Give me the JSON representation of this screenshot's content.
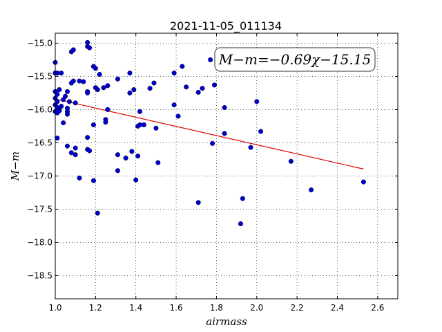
{
  "chart_data": {
    "type": "scatter",
    "title": "2021-11-05_011134",
    "xlabel": "airmass",
    "ylabel": "M−m",
    "xlim": [
      1.0,
      2.7
    ],
    "ylim": [
      -18.85,
      -14.85
    ],
    "y_inverted": true,
    "xticks": [
      1.0,
      1.2,
      1.4,
      1.6,
      1.8,
      2.0,
      2.2,
      2.4,
      2.6
    ],
    "xtick_labels": [
      "1.0",
      "1.2",
      "1.4",
      "1.6",
      "1.8",
      "2.0",
      "2.2",
      "2.4",
      "2.6"
    ],
    "yticks": [
      -15.0,
      -15.5,
      -16.0,
      -16.5,
      -17.0,
      -17.5,
      -18.0,
      -18.5
    ],
    "ytick_labels": [
      "−15.0",
      "−15.5",
      "−16.0",
      "−16.5",
      "−17.0",
      "−17.5",
      "−18.0",
      "−18.5"
    ],
    "grid": true,
    "annotation": "M−m=−0.69χ−15.15",
    "point_color": "#0000cc",
    "fit_color": "#dd0000",
    "fit": {
      "slope": -0.69,
      "intercept": -15.15,
      "x_range": [
        1.0,
        2.53
      ]
    },
    "points": [
      {
        "x": 1.0,
        "y": -15.29
      },
      {
        "x": 1.01,
        "y": -15.45
      },
      {
        "x": 1.0,
        "y": -15.45
      },
      {
        "x": 1.0,
        "y": -15.73
      },
      {
        "x": 1.01,
        "y": -15.77
      },
      {
        "x": 1.02,
        "y": -15.7
      },
      {
        "x": 1.0,
        "y": -15.83
      },
      {
        "x": 1.01,
        "y": -15.88
      },
      {
        "x": 1.0,
        "y": -15.93
      },
      {
        "x": 1.01,
        "y": -15.97
      },
      {
        "x": 1.02,
        "y": -16.0
      },
      {
        "x": 1.0,
        "y": -16.03
      },
      {
        "x": 1.01,
        "y": -16.05
      },
      {
        "x": 1.03,
        "y": -15.95
      },
      {
        "x": 1.02,
        "y": -16.02
      },
      {
        "x": 1.03,
        "y": -15.45
      },
      {
        "x": 1.04,
        "y": -15.85
      },
      {
        "x": 1.05,
        "y": -15.8
      },
      {
        "x": 1.04,
        "y": -16.2
      },
      {
        "x": 1.01,
        "y": -16.43
      },
      {
        "x": 1.06,
        "y": -15.73
      },
      {
        "x": 1.06,
        "y": -15.98
      },
      {
        "x": 1.06,
        "y": -16.03
      },
      {
        "x": 1.06,
        "y": -16.07
      },
      {
        "x": 1.07,
        "y": -15.88
      },
      {
        "x": 1.08,
        "y": -15.6
      },
      {
        "x": 1.09,
        "y": -15.57
      },
      {
        "x": 1.08,
        "y": -15.13
      },
      {
        "x": 1.09,
        "y": -15.1
      },
      {
        "x": 1.1,
        "y": -15.9
      },
      {
        "x": 1.06,
        "y": -16.55
      },
      {
        "x": 1.08,
        "y": -16.65
      },
      {
        "x": 1.1,
        "y": -16.68
      },
      {
        "x": 1.1,
        "y": -16.58
      },
      {
        "x": 1.12,
        "y": -15.57
      },
      {
        "x": 1.14,
        "y": -15.58
      },
      {
        "x": 1.16,
        "y": -14.99
      },
      {
        "x": 1.16,
        "y": -15.05
      },
      {
        "x": 1.17,
        "y": -15.07
      },
      {
        "x": 1.16,
        "y": -15.73
      },
      {
        "x": 1.16,
        "y": -15.75
      },
      {
        "x": 1.19,
        "y": -15.35
      },
      {
        "x": 1.2,
        "y": -15.38
      },
      {
        "x": 1.22,
        "y": -15.47
      },
      {
        "x": 1.2,
        "y": -15.67
      },
      {
        "x": 1.21,
        "y": -15.7
      },
      {
        "x": 1.24,
        "y": -15.67
      },
      {
        "x": 1.26,
        "y": -15.64
      },
      {
        "x": 1.19,
        "y": -16.23
      },
      {
        "x": 1.16,
        "y": -16.42
      },
      {
        "x": 1.16,
        "y": -16.6
      },
      {
        "x": 1.17,
        "y": -16.62
      },
      {
        "x": 1.12,
        "y": -17.03
      },
      {
        "x": 1.19,
        "y": -17.07
      },
      {
        "x": 1.21,
        "y": -17.56
      },
      {
        "x": 1.25,
        "y": -16.15
      },
      {
        "x": 1.25,
        "y": -16.19
      },
      {
        "x": 1.26,
        "y": -16.0
      },
      {
        "x": 1.31,
        "y": -15.54
      },
      {
        "x": 1.37,
        "y": -15.45
      },
      {
        "x": 1.39,
        "y": -15.7
      },
      {
        "x": 1.37,
        "y": -15.75
      },
      {
        "x": 1.31,
        "y": -16.68
      },
      {
        "x": 1.31,
        "y": -16.92
      },
      {
        "x": 1.35,
        "y": -16.73
      },
      {
        "x": 1.38,
        "y": -16.63
      },
      {
        "x": 1.4,
        "y": -17.06
      },
      {
        "x": 1.41,
        "y": -16.7
      },
      {
        "x": 1.41,
        "y": -16.25
      },
      {
        "x": 1.42,
        "y": -16.23
      },
      {
        "x": 1.44,
        "y": -16.23
      },
      {
        "x": 1.42,
        "y": -16.03
      },
      {
        "x": 1.47,
        "y": -15.68
      },
      {
        "x": 1.49,
        "y": -15.6
      },
      {
        "x": 1.5,
        "y": -16.28
      },
      {
        "x": 1.51,
        "y": -16.8
      },
      {
        "x": 1.59,
        "y": -15.45
      },
      {
        "x": 1.59,
        "y": -15.93
      },
      {
        "x": 1.61,
        "y": -16.1
      },
      {
        "x": 1.63,
        "y": -15.35
      },
      {
        "x": 1.65,
        "y": -15.66
      },
      {
        "x": 1.71,
        "y": -15.74
      },
      {
        "x": 1.73,
        "y": -15.68
      },
      {
        "x": 1.77,
        "y": -15.25
      },
      {
        "x": 1.79,
        "y": -15.63
      },
      {
        "x": 1.78,
        "y": -16.51
      },
      {
        "x": 1.71,
        "y": -17.4
      },
      {
        "x": 1.84,
        "y": -15.97
      },
      {
        "x": 1.84,
        "y": -16.36
      },
      {
        "x": 1.92,
        "y": -17.72
      },
      {
        "x": 1.93,
        "y": -17.34
      },
      {
        "x": 1.97,
        "y": -16.57
      },
      {
        "x": 2.0,
        "y": -15.88
      },
      {
        "x": 2.02,
        "y": -16.33
      },
      {
        "x": 2.17,
        "y": -16.78
      },
      {
        "x": 2.27,
        "y": -17.21
      },
      {
        "x": 2.53,
        "y": -17.09
      }
    ]
  }
}
